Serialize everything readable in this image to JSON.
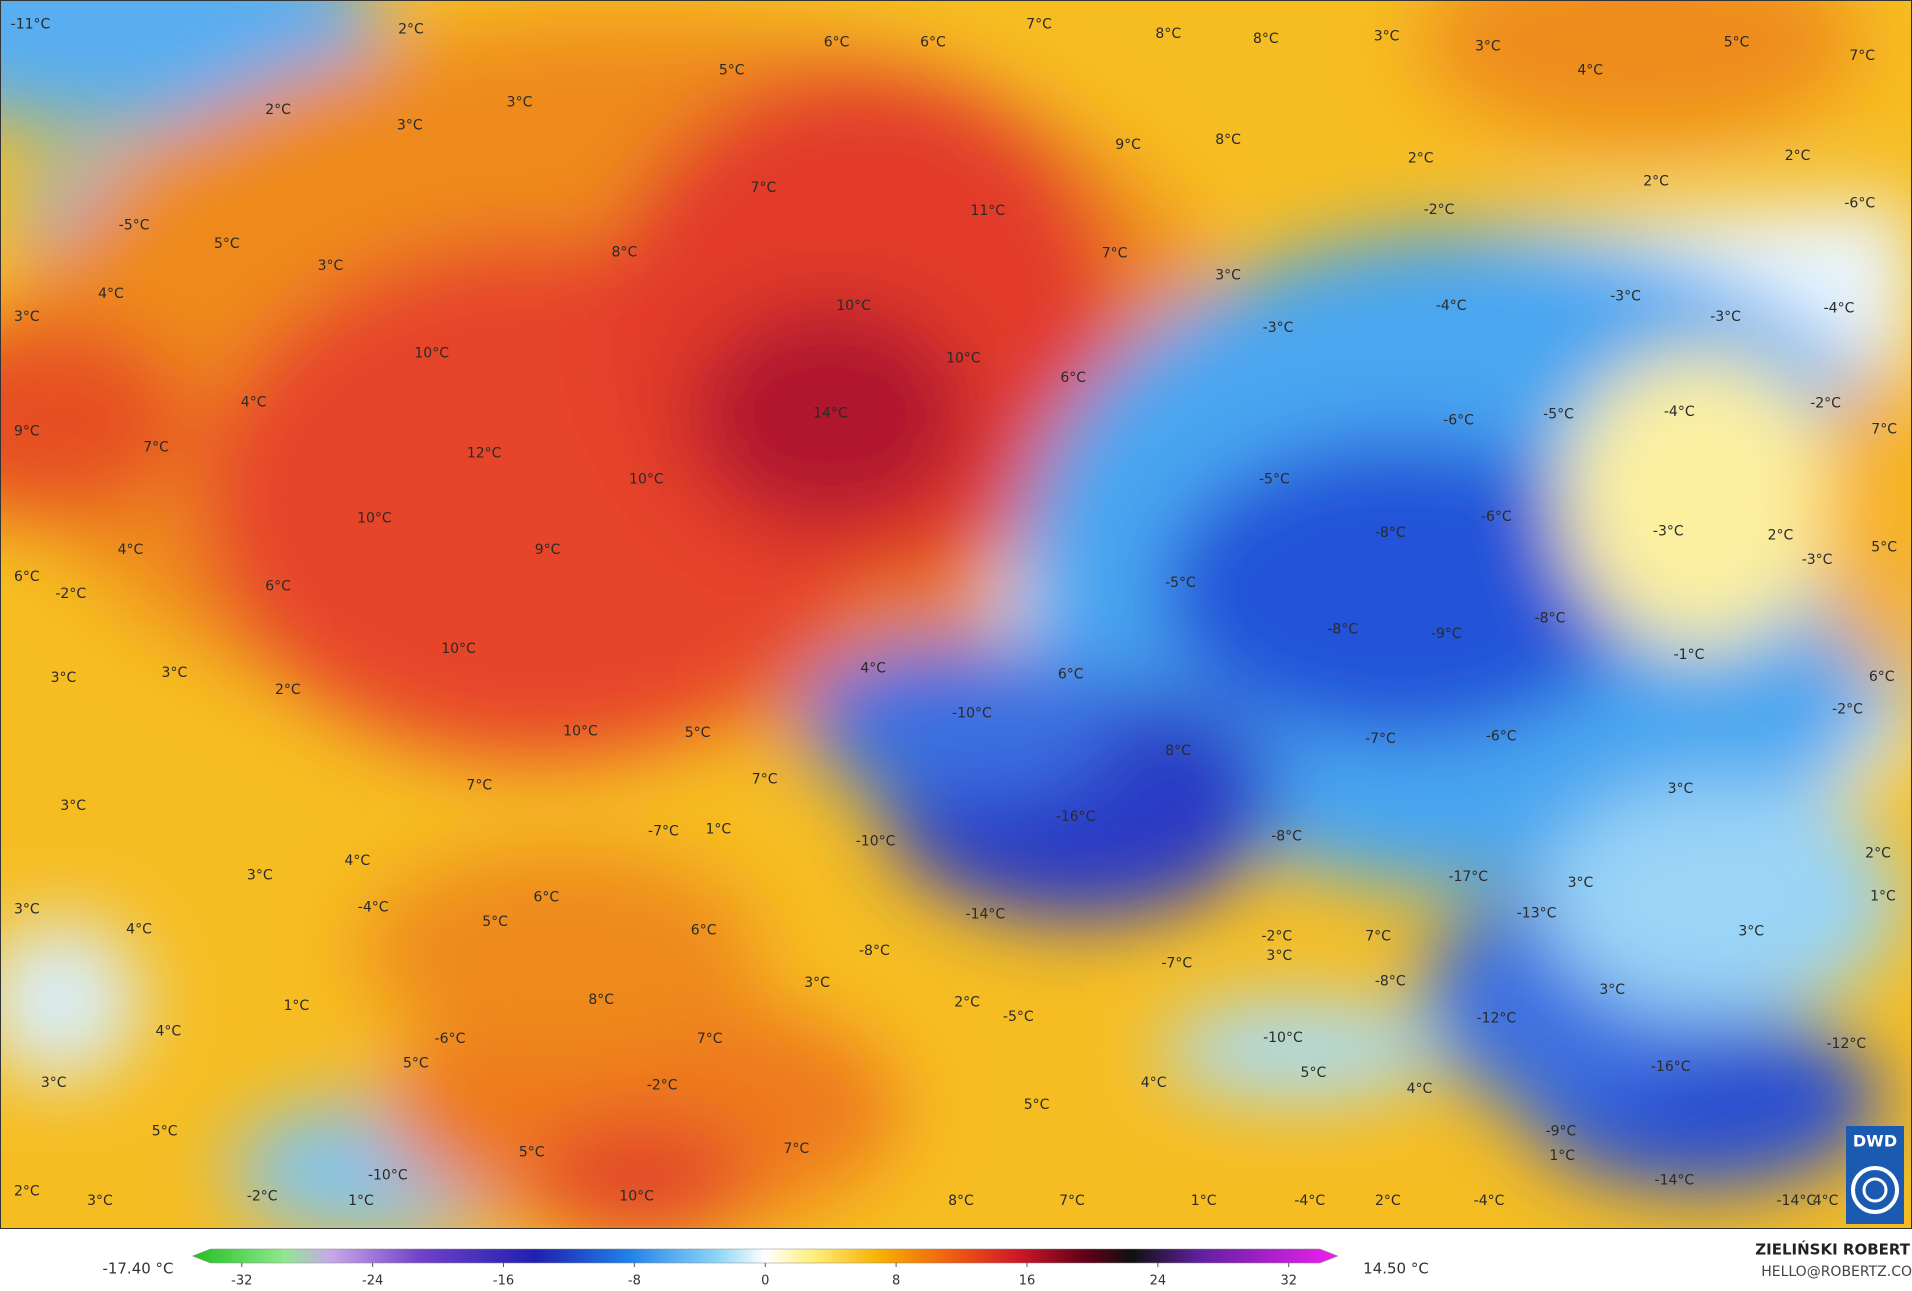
{
  "map": {
    "labels": [
      "-11°C",
      "2°C",
      "6°C",
      "6°C",
      "7°C",
      "8°C",
      "8°C",
      "3°C",
      "3°C",
      "4°C",
      "5°C",
      "7°C",
      "5°C",
      "2°C",
      "3°C",
      "3°C",
      "9°C",
      "8°C",
      "2°C",
      "2°C",
      "2°C",
      "7°C",
      "11°C",
      "-2°C",
      "-6°C",
      "-5°C",
      "5°C",
      "8°C",
      "3°C",
      "7°C",
      "4°C",
      "3°C",
      "10°C",
      "-4°C",
      "-3°C",
      "-3°C",
      "-4°C",
      "3°C",
      "-3°C",
      "10°C",
      "10°C",
      "6°C",
      "4°C",
      "14°C",
      "-6°C",
      "-5°C",
      "-4°C",
      "-2°C",
      "9°C",
      "7°C",
      "12°C",
      "7°C",
      "10°C",
      "-5°C",
      "10°C",
      "-6°C",
      "-8°C",
      "-3°C",
      "2°C",
      "4°C",
      "9°C",
      "-3°C",
      "5°C",
      "6°C",
      "-2°C",
      "6°C",
      "-5°C",
      "-8°C",
      "-9°C",
      "-8°C",
      "10°C",
      "-1°C",
      "3°C",
      "3°C",
      "4°C",
      "6°C",
      "6°C",
      "2°C",
      "-10°C",
      "-2°C",
      "10°C",
      "5°C",
      "-7°C",
      "-6°C",
      "8°C",
      "7°C",
      "7°C",
      "3°C",
      "-16°C",
      "3°C",
      "-7°C",
      "1°C",
      "-8°C",
      "-10°C",
      "2°C",
      "4°C",
      "3°C",
      "-17°C",
      "3°C",
      "-4°C",
      "6°C",
      "3°C",
      "-14°C",
      "-13°C",
      "1°C",
      "5°C",
      "4°C",
      "6°C",
      "-2°C",
      "7°C",
      "3°C",
      "-8°C",
      "-7°C",
      "3°C",
      "3°C",
      "-8°C",
      "3°C",
      "8°C",
      "1°C",
      "2°C",
      "-5°C",
      "-12°C",
      "4°C",
      "-6°C",
      "7°C",
      "-10°C",
      "-12°C",
      "5°C",
      "-16°C",
      "3°C",
      "4°C",
      "5°C",
      "-2°C",
      "4°C",
      "5°C",
      "5°C",
      "-9°C",
      "5°C",
      "7°C",
      "1°C",
      "-10°C",
      "-14°C",
      "2°C",
      "10°C",
      "-2°C",
      "3°C",
      "1°C",
      "8°C",
      "7°C",
      "1°C",
      "-4°C",
      "2°C",
      "-4°C",
      "-14°C",
      "4°C"
    ]
  },
  "colorbar": {
    "min_label": "-17.40 °C",
    "max_label": "14.50 °C",
    "ticks": [
      -32,
      -24,
      -16,
      -8,
      0,
      8,
      16,
      24,
      32
    ],
    "lim": [
      -35,
      35
    ]
  },
  "credit": {
    "author": "ZIELIŃSKI ROBERT",
    "email": "HELLO@ROBERTZ.CO",
    "logo": "DWD"
  }
}
